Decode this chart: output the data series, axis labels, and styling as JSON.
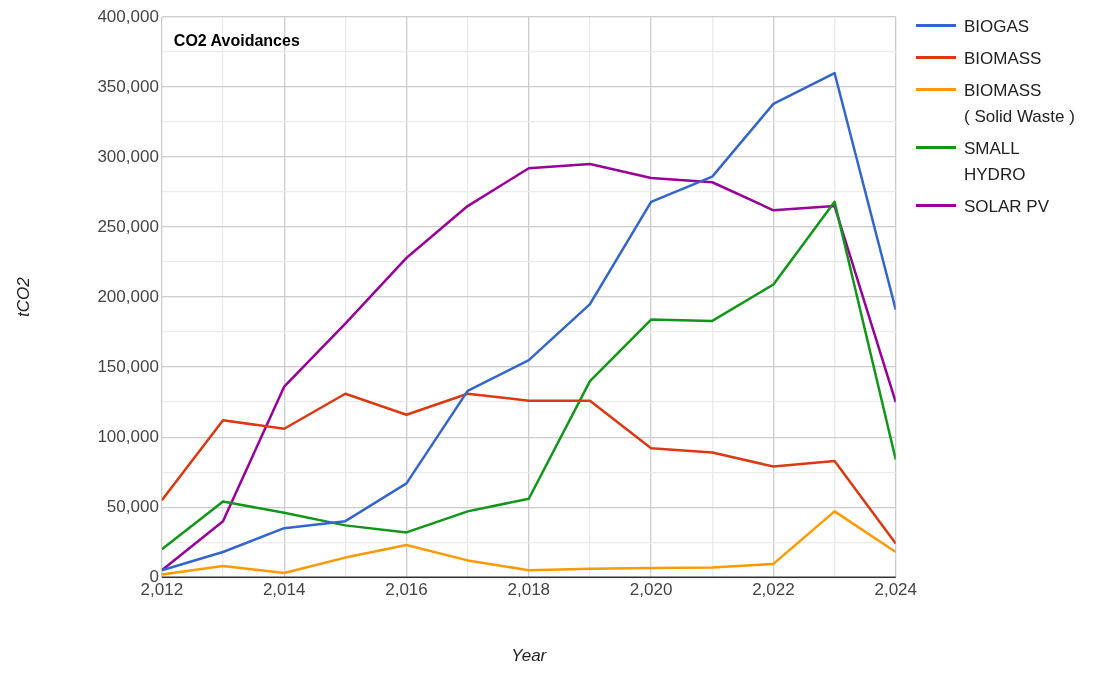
{
  "chart_data": {
    "type": "line",
    "title": "CO2 Avoidances",
    "xlabel": "Year",
    "ylabel": "tCO2",
    "x": [
      2012,
      2013,
      2014,
      2015,
      2016,
      2017,
      2018,
      2019,
      2020,
      2021,
      2022,
      2023,
      2024
    ],
    "series": [
      {
        "name": "BIOGAS",
        "color": "#3366cc",
        "values": [
          5000,
          18000,
          35000,
          40000,
          67000,
          133000,
          155000,
          195000,
          268000,
          286000,
          338000,
          360000,
          191000
        ]
      },
      {
        "name": "BIOMASS",
        "color": "#dc3912",
        "values": [
          55000,
          112000,
          106000,
          131000,
          116000,
          131000,
          126000,
          126000,
          92000,
          89000,
          79000,
          83000,
          24000
        ]
      },
      {
        "name": "BIOMASS\n( Solid Waste )",
        "color": "#ff9900",
        "values": [
          2000,
          8000,
          3000,
          14000,
          23000,
          12000,
          5000,
          6000,
          6500,
          7000,
          9500,
          47000,
          18000
        ]
      },
      {
        "name": "SMALL\nHYDRO",
        "color": "#109618",
        "values": [
          20000,
          54000,
          46000,
          37000,
          32000,
          47000,
          56000,
          140000,
          184000,
          183000,
          209000,
          268000,
          84000
        ]
      },
      {
        "name": "SOLAR PV",
        "color": "#990099",
        "values": [
          5000,
          40000,
          136000,
          181000,
          228000,
          265000,
          292000,
          295000,
          285000,
          282000,
          262000,
          265000,
          125000
        ]
      }
    ],
    "xlim": [
      2012,
      2024
    ],
    "xticks": [
      {
        "value": 2012,
        "label": "2,012"
      },
      {
        "value": 2013,
        "label": null
      },
      {
        "value": 2014,
        "label": "2,014"
      },
      {
        "value": 2015,
        "label": null
      },
      {
        "value": 2016,
        "label": "2,016"
      },
      {
        "value": 2017,
        "label": null
      },
      {
        "value": 2018,
        "label": "2,018"
      },
      {
        "value": 2019,
        "label": null
      },
      {
        "value": 2020,
        "label": "2,020"
      },
      {
        "value": 2021,
        "label": null
      },
      {
        "value": 2022,
        "label": "2,022"
      },
      {
        "value": 2023,
        "label": null
      },
      {
        "value": 2024,
        "label": "2,024"
      }
    ],
    "ylim": [
      0,
      400000
    ],
    "yticks": [
      0,
      {
        "value": 25000,
        "label": null
      },
      {
        "value": 50000,
        "label": "50,000"
      },
      {
        "value": 75000,
        "label": null
      },
      {
        "value": 100000,
        "label": "100,000"
      },
      {
        "value": 125000,
        "label": null
      },
      {
        "value": 150000,
        "label": "150,000"
      },
      {
        "value": 175000,
        "label": null
      },
      {
        "value": 200000,
        "label": "200,000"
      },
      {
        "value": 225000,
        "label": null
      },
      {
        "value": 250000,
        "label": "250,000"
      },
      {
        "value": 275000,
        "label": null
      },
      {
        "value": 300000,
        "label": "300,000"
      },
      {
        "value": 325000,
        "label": null
      },
      {
        "value": 350000,
        "label": "350,000"
      },
      {
        "value": 375000,
        "label": null
      },
      {
        "value": 400000,
        "label": "400,000"
      }
    ],
    "grid": true,
    "legend": "right",
    "marker": "none",
    "line_style": "solid"
  }
}
